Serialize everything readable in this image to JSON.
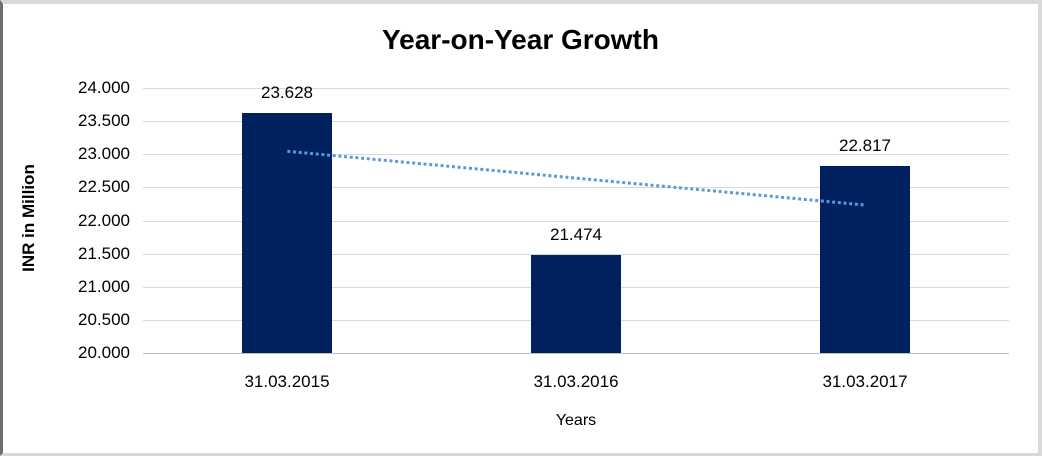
{
  "chart_data": {
    "type": "bar",
    "title": "Year-on-Year Growth",
    "xlabel": "Years",
    "ylabel": "INR in Million",
    "categories": [
      "31.03.2015",
      "31.03.2016",
      "31.03.2017"
    ],
    "values": [
      23.628,
      21.474,
      22.817
    ],
    "data_labels": [
      "23.628",
      "21.474",
      "22.817"
    ],
    "ylim": [
      20,
      24
    ],
    "ytick_step": 0.5,
    "ytick_labels": [
      "24.000",
      "23.500",
      "23.000",
      "22.500",
      "22.000",
      "21.500",
      "21.000",
      "20.500",
      "20.000"
    ],
    "grid": true,
    "legend": "none",
    "colors": {
      "bar": "#002060",
      "gridline": "#D9D9D9",
      "axis_line": "#BFBFBF",
      "text": "#000000"
    },
    "trendline": {
      "type": "linear",
      "style": "dotted",
      "color": "#5B9BD5",
      "start_value": 23.045,
      "end_value": 22.234
    }
  }
}
